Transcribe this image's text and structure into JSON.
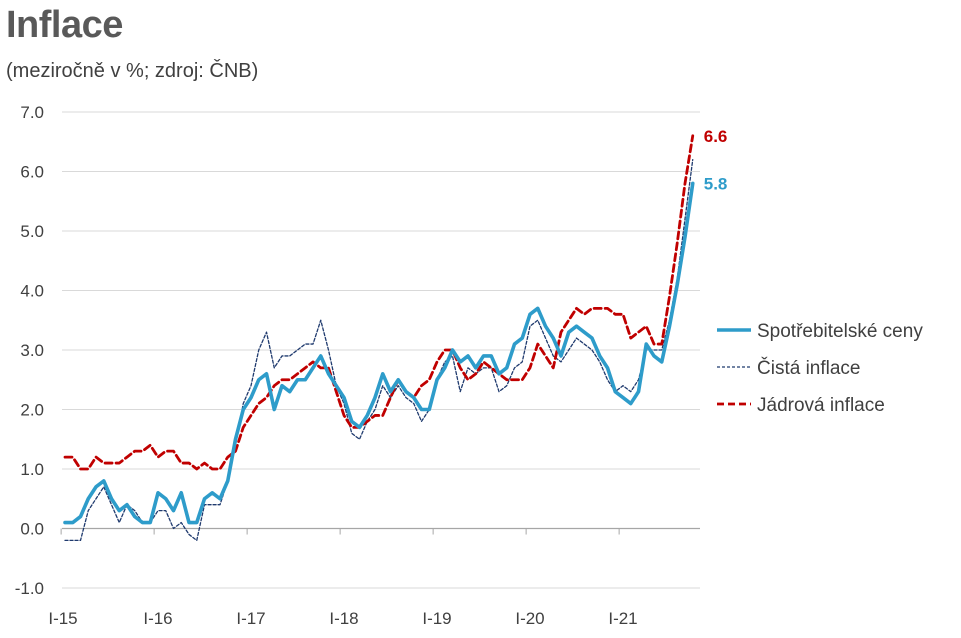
{
  "chart_data": {
    "type": "line",
    "title": "Inflace",
    "subtitle": "(meziročně v %; zdroj: ČNB)",
    "xlabel": "",
    "ylabel": "",
    "ylim": [
      -1.0,
      7.0
    ],
    "yticks": [
      "-1.0",
      "0.0",
      "1.0",
      "2.0",
      "3.0",
      "4.0",
      "5.0",
      "6.0",
      "7.0"
    ],
    "ytick_values": [
      -1,
      0,
      1,
      2,
      3,
      4,
      5,
      6,
      7
    ],
    "xtick_labels": [
      "I-15",
      "I-16",
      "I-17",
      "I-18",
      "I-19",
      "I-20",
      "I-21"
    ],
    "grid": "horizontal",
    "legend_position": "right",
    "colors": {
      "cpi": "#2E9CCA",
      "net": "#1F3A6E",
      "core": "#C00000"
    },
    "end_labels": [
      {
        "series": "Jádrová inflace",
        "text": "6.6",
        "color": "#C00000"
      },
      {
        "series": "Spotřebitelské ceny",
        "text": "5.8",
        "color": "#2E9CCA"
      }
    ],
    "series": [
      {
        "name": "Spotřebitelské ceny",
        "style": "solid",
        "values": [
          0.1,
          0.1,
          0.2,
          0.5,
          0.7,
          0.8,
          0.5,
          0.3,
          0.4,
          0.2,
          0.1,
          0.1,
          0.6,
          0.5,
          0.3,
          0.6,
          0.1,
          0.1,
          0.5,
          0.6,
          0.5,
          0.8,
          1.5,
          2.0,
          2.2,
          2.5,
          2.6,
          2.0,
          2.4,
          2.3,
          2.5,
          2.5,
          2.7,
          2.9,
          2.6,
          2.4,
          2.2,
          1.8,
          1.7,
          1.9,
          2.2,
          2.6,
          2.3,
          2.5,
          2.3,
          2.2,
          2.0,
          2.0,
          2.5,
          2.7,
          3.0,
          2.8,
          2.9,
          2.7,
          2.9,
          2.9,
          2.6,
          2.7,
          3.1,
          3.2,
          3.6,
          3.7,
          3.4,
          3.2,
          2.9,
          3.3,
          3.4,
          3.3,
          3.2,
          2.9,
          2.7,
          2.3,
          2.2,
          2.1,
          2.3,
          3.1,
          2.9,
          2.8,
          3.4,
          4.1,
          4.9,
          5.8
        ]
      },
      {
        "name": "Čistá inflace",
        "style": "thin-dashed",
        "values": [
          -0.2,
          -0.2,
          -0.2,
          0.3,
          0.5,
          0.7,
          0.4,
          0.1,
          0.4,
          0.3,
          0.1,
          0.1,
          0.3,
          0.3,
          0.0,
          0.1,
          -0.1,
          -0.2,
          0.4,
          0.4,
          0.4,
          0.8,
          1.4,
          2.1,
          2.4,
          3.0,
          3.3,
          2.7,
          2.9,
          2.9,
          3.0,
          3.1,
          3.1,
          3.5,
          3.0,
          2.4,
          2.1,
          1.6,
          1.5,
          1.8,
          2.0,
          2.4,
          2.2,
          2.4,
          2.2,
          2.1,
          1.8,
          2.0,
          2.5,
          2.8,
          2.9,
          2.3,
          2.7,
          2.6,
          2.7,
          2.7,
          2.3,
          2.4,
          2.7,
          2.8,
          3.4,
          3.5,
          3.2,
          2.9,
          2.8,
          3.0,
          3.2,
          3.1,
          3.0,
          2.8,
          2.5,
          2.3,
          2.4,
          2.3,
          2.5,
          3.0,
          3.0,
          3.0,
          3.5,
          4.2,
          5.2,
          6.2
        ]
      },
      {
        "name": "Jádrová inflace",
        "style": "dashed",
        "values": [
          1.2,
          1.2,
          1.0,
          1.0,
          1.2,
          1.1,
          1.1,
          1.1,
          1.2,
          1.3,
          1.3,
          1.4,
          1.2,
          1.3,
          1.3,
          1.1,
          1.1,
          1.0,
          1.1,
          1.0,
          1.0,
          1.2,
          1.3,
          1.7,
          1.9,
          2.1,
          2.2,
          2.4,
          2.5,
          2.5,
          2.6,
          2.7,
          2.8,
          2.7,
          2.7,
          2.3,
          1.9,
          1.7,
          1.7,
          1.8,
          1.9,
          1.9,
          2.2,
          2.5,
          2.3,
          2.2,
          2.4,
          2.5,
          2.8,
          3.0,
          3.0,
          2.7,
          2.5,
          2.6,
          2.8,
          2.7,
          2.6,
          2.5,
          2.5,
          2.5,
          2.7,
          3.1,
          2.9,
          2.7,
          3.3,
          3.5,
          3.7,
          3.6,
          3.7,
          3.7,
          3.7,
          3.6,
          3.6,
          3.2,
          3.3,
          3.4,
          3.1,
          3.1,
          3.9,
          4.8,
          5.8,
          6.6
        ]
      }
    ]
  }
}
